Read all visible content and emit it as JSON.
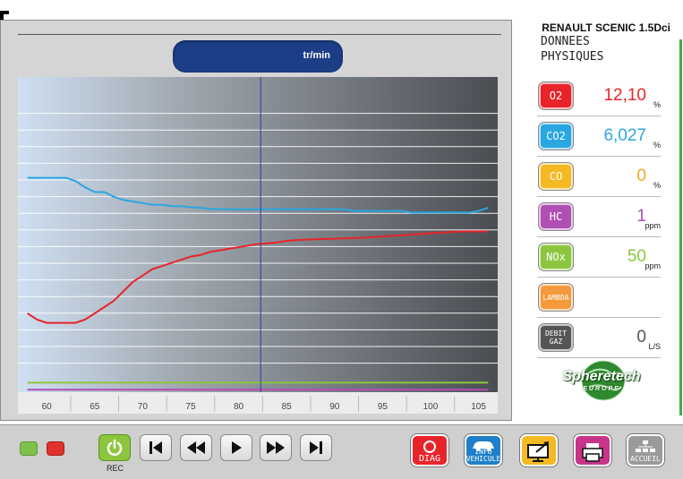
{
  "header": {
    "vehicle": "RENAULT SCENIC 1.5Dci"
  },
  "rpm": {
    "unit": "tr/min"
  },
  "chart_data": {
    "type": "line",
    "x": [
      58,
      59,
      60,
      61,
      62,
      63,
      64,
      65,
      66,
      67,
      68,
      69,
      70,
      71,
      72,
      73,
      74,
      75,
      76,
      77,
      78,
      79,
      80,
      81,
      82,
      83,
      84,
      85,
      86,
      87,
      88,
      89,
      90,
      91,
      92,
      93,
      94,
      95,
      96,
      97,
      98,
      99,
      100,
      101,
      102,
      103,
      104,
      105,
      106
    ],
    "series": [
      {
        "key": "co2",
        "values": [
          6.8,
          6.8,
          6.8,
          6.8,
          6.8,
          6.7,
          6.5,
          6.35,
          6.35,
          6.2,
          6.1,
          6.05,
          6.0,
          5.95,
          5.95,
          5.9,
          5.9,
          5.87,
          5.85,
          5.82,
          5.8,
          5.8,
          5.8,
          5.8,
          5.8,
          5.8,
          5.8,
          5.8,
          5.8,
          5.8,
          5.8,
          5.8,
          5.8,
          5.8,
          5.75,
          5.75,
          5.75,
          5.75,
          5.75,
          5.75,
          5.7,
          5.7,
          5.7,
          5.7,
          5.7,
          5.7,
          5.7,
          5.75,
          5.85
        ]
      },
      {
        "key": "o2",
        "values": [
          2.5,
          2.3,
          2.2,
          2.2,
          2.2,
          2.2,
          2.3,
          2.5,
          2.7,
          2.9,
          3.2,
          3.5,
          3.7,
          3.9,
          4.0,
          4.1,
          4.2,
          4.3,
          4.35,
          4.45,
          4.5,
          4.55,
          4.6,
          4.65,
          4.7,
          4.72,
          4.75,
          4.8,
          4.82,
          4.84,
          4.85,
          4.86,
          4.87,
          4.88,
          4.89,
          4.9,
          4.92,
          4.94,
          4.96,
          4.98,
          5.0,
          5.02,
          5.04,
          5.06,
          5.08,
          5.1,
          5.1,
          5.1,
          5.1
        ]
      },
      {
        "key": "nox",
        "values": [
          0.3,
          0.3,
          0.3,
          0.3,
          0.3,
          0.3,
          0.3,
          0.3,
          0.3,
          0.3,
          0.3,
          0.3,
          0.3,
          0.3,
          0.3,
          0.3,
          0.3,
          0.3,
          0.3,
          0.3,
          0.3,
          0.3,
          0.3,
          0.3,
          0.3,
          0.3,
          0.3,
          0.3,
          0.3,
          0.3,
          0.3,
          0.3,
          0.3,
          0.3,
          0.3,
          0.3,
          0.3,
          0.3,
          0.3,
          0.3,
          0.3,
          0.3,
          0.3,
          0.3,
          0.3,
          0.3,
          0.3,
          0.3,
          0.3
        ]
      },
      {
        "key": "hc",
        "values": [
          0.08,
          0.08,
          0.08,
          0.08,
          0.08,
          0.08,
          0.08,
          0.08,
          0.08,
          0.08,
          0.08,
          0.08,
          0.08,
          0.08,
          0.08,
          0.08,
          0.08,
          0.08,
          0.08,
          0.08,
          0.08,
          0.08,
          0.08,
          0.08,
          0.08,
          0.08,
          0.08,
          0.08,
          0.08,
          0.08,
          0.08,
          0.08,
          0.08,
          0.08,
          0.08,
          0.08,
          0.08,
          0.08,
          0.08,
          0.08,
          0.08,
          0.08,
          0.08,
          0.08,
          0.08,
          0.08,
          0.08,
          0.08,
          0.08
        ]
      }
    ],
    "xticks": [
      "60",
      "65",
      "70",
      "75",
      "80",
      "85",
      "90",
      "95",
      "100",
      "105"
    ],
    "xtick_values": [
      60,
      65,
      70,
      75,
      80,
      85,
      90,
      95,
      100,
      105
    ],
    "xlim": [
      57,
      107
    ],
    "ylim": [
      0,
      10
    ],
    "cursor_x": 82.3,
    "grid": true
  },
  "panel": {
    "title_line1": "DONNEES",
    "title_line2": "PHYSIQUES",
    "rows": [
      {
        "badge": "O2",
        "value": "12,10",
        "unit": "%",
        "color": "#e8242a",
        "value_color": "#e8242a"
      },
      {
        "badge": "CO2",
        "value": "6,027",
        "unit": "%",
        "color": "#2aa6e0",
        "value_color": "#2aa6e0"
      },
      {
        "badge": "CO",
        "value": "0",
        "unit": "%",
        "color": "#f5b923",
        "value_color": "#f0a81d"
      },
      {
        "badge": "HC",
        "value": "1",
        "unit": "ppm",
        "color": "#b04fb3",
        "value_color": "#b04fb3"
      },
      {
        "badge": "NOx",
        "value": "50",
        "unit": "ppm",
        "color": "#8cc63e",
        "value_color": "#8cc63e"
      },
      {
        "badge": "LAMBDA",
        "value": "",
        "unit": "",
        "color": "#f59a3c",
        "value_color": "#f59a3c"
      },
      {
        "badge": "DEBIT GAZ",
        "value": "0",
        "unit": "L/S",
        "color": "#555555",
        "value_color": "#555555"
      }
    ]
  },
  "logo": {
    "text": "Spheretech",
    "sub": "EUROPE"
  },
  "toolbar": {
    "rec_label": "REC",
    "diag_label": "DIAG",
    "info_label_1": "INFO",
    "info_label_2": "VEHICULE",
    "accueil_label": "ACCUEIL"
  }
}
